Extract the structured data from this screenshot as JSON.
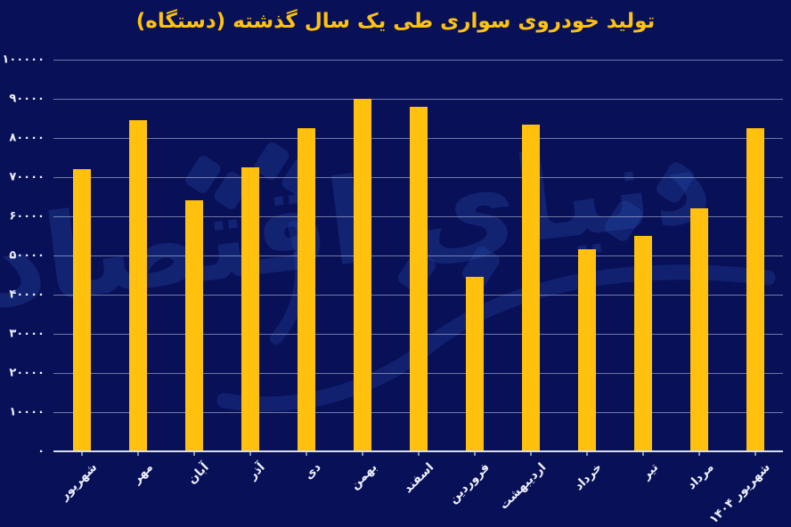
{
  "title": {
    "text": "تولید خودروی سواری طی یک سال گذشته (دستگاه)"
  },
  "watermark": {
    "text": "دنیای اقتصاد"
  },
  "colors": {
    "background": "#081058",
    "bar": "#FFC10D",
    "title": "#FFC20E",
    "gridline": "#C4CBE4",
    "axis_line": "#D9DEEC",
    "tick_text": "#EDF0FA",
    "watermark": "#2B50B0"
  },
  "chart_data": {
    "type": "bar",
    "title": "تولید خودروی سواری طی یک سال گذشته (دستگاه)",
    "categories": [
      "شهریور",
      "مهر",
      "آبان",
      "آذر",
      "دی",
      "بهمن",
      "اسفند",
      "فروردین",
      "اردیبهشت",
      "خرداد",
      "تیر",
      "مرداد",
      "شهریور ۱۴۰۴"
    ],
    "values": [
      72000,
      84500,
      64000,
      72500,
      82500,
      90000,
      88000,
      44500,
      83500,
      51500,
      55000,
      62000,
      82500
    ],
    "xlabel": "",
    "ylabel": "",
    "ylim": [
      0,
      100000
    ],
    "ytick_step": 10000,
    "ytick_labels": [
      "۰",
      "۱۰۰۰۰",
      "۲۰۰۰۰",
      "۳۰۰۰۰",
      "۴۰۰۰۰",
      "۵۰۰۰۰",
      "۶۰۰۰۰",
      "۷۰۰۰۰",
      "۸۰۰۰۰",
      "۹۰۰۰۰",
      "۱۰۰۰۰۰"
    ],
    "grid": true,
    "legend": "none"
  }
}
